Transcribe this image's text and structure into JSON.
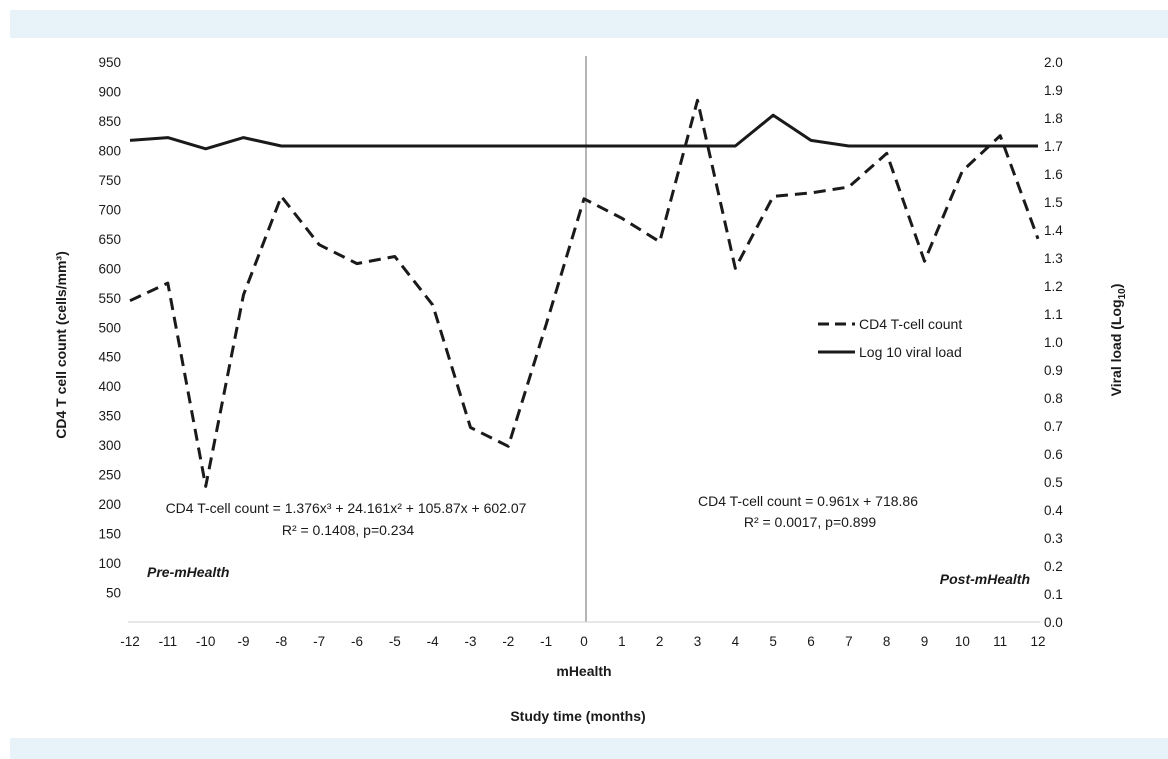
{
  "chart_data": {
    "type": "line",
    "title": "",
    "xlabel": "Study time (months)",
    "xsublabel": "mHealth",
    "ylabel_left": "CD4 T cell count (cells/mm³)",
    "ylabel_right_main": "Viral load (Log",
    "ylabel_right_sub": "10",
    "ylabel_right_close": ")",
    "x": [
      -12,
      -11,
      -10,
      -9,
      -8,
      -7,
      -6,
      -5,
      -4,
      -3,
      -2,
      -1,
      0,
      1,
      2,
      3,
      4,
      5,
      6,
      7,
      8,
      9,
      10,
      11,
      12
    ],
    "xlim": [
      -12,
      12
    ],
    "ylim_left": [
      0,
      950
    ],
    "ylim_right": [
      0.0,
      2.0
    ],
    "yticks_left": [
      "50",
      "100",
      "150",
      "200",
      "250",
      "300",
      "350",
      "400",
      "450",
      "500",
      "550",
      "600",
      "650",
      "700",
      "750",
      "800",
      "850",
      "900",
      "950"
    ],
    "yticks_right": [
      "0.0",
      "0.1",
      "0.2",
      "0.3",
      "0.4",
      "0.5",
      "0.6",
      "0.7",
      "0.8",
      "0.9",
      "1.0",
      "1.1",
      "1.2",
      "1.3",
      "1.4",
      "1.5",
      "1.6",
      "1.7",
      "1.8",
      "1.9",
      "2.0"
    ],
    "series": [
      {
        "name": "CD4 T-cell count",
        "axis": "left",
        "style": "dashed",
        "color": "#1a1a1a",
        "values": [
          545,
          575,
          230,
          555,
          722,
          640,
          608,
          620,
          538,
          330,
          298,
          505,
          718,
          685,
          645,
          885,
          600,
          722,
          728,
          738,
          795,
          612,
          765,
          825,
          650
        ]
      },
      {
        "name": "Log 10 viral load",
        "axis": "right",
        "style": "solid",
        "color": "#1a1a1a",
        "values": [
          1.72,
          1.73,
          1.69,
          1.73,
          1.7,
          1.7,
          1.7,
          1.7,
          1.7,
          1.7,
          1.7,
          1.7,
          1.7,
          1.7,
          1.7,
          1.7,
          1.7,
          1.81,
          1.72,
          1.7,
          1.7,
          1.7,
          1.7,
          1.7,
          1.7
        ]
      }
    ],
    "divider_x": 0,
    "legend_position": "right",
    "grid": false,
    "annotations": {
      "pre_equation": "CD4 T-cell count = 1.376x³ + 24.161x² + 105.87x + 602.07",
      "pre_stats": "R² = 0.1408, p=0.234",
      "post_equation": "CD4 T-cell count  = 0.961x + 718.86",
      "post_stats": "R² = 0.0017, p=0.899",
      "pre_label": "Pre-mHealth",
      "post_label": "Post-mHealth"
    }
  }
}
